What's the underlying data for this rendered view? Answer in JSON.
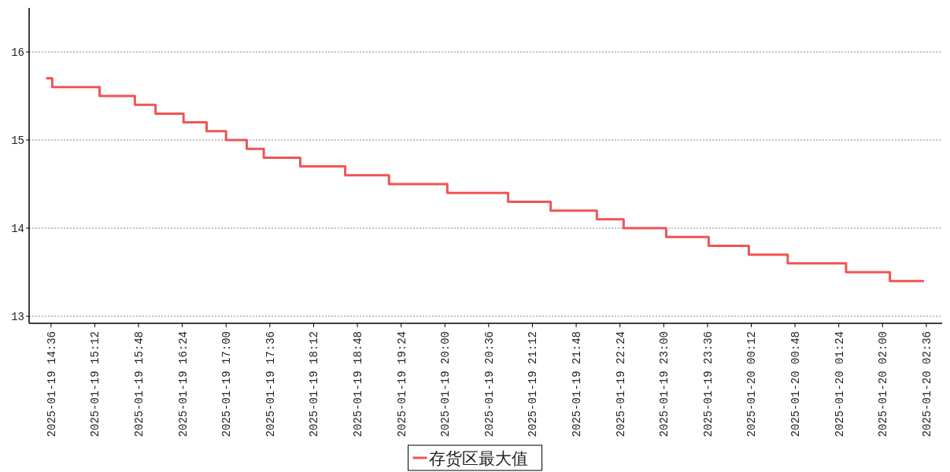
{
  "chart_data": {
    "type": "step",
    "x": [
      "2025-01-19T14:32",
      "2025-01-19T14:37",
      "2025-01-19T15:16",
      "2025-01-19T15:45",
      "2025-01-19T16:02",
      "2025-01-19T16:25",
      "2025-01-19T16:44",
      "2025-01-19T17:00",
      "2025-01-19T17:17",
      "2025-01-19T17:31",
      "2025-01-19T18:01",
      "2025-01-19T18:38",
      "2025-01-19T19:14",
      "2025-01-19T20:02",
      "2025-01-19T20:52",
      "2025-01-19T21:27",
      "2025-01-19T22:05",
      "2025-01-19T22:27",
      "2025-01-19T23:02",
      "2025-01-19T23:37",
      "2025-01-20T00:10",
      "2025-01-20T00:42",
      "2025-01-20T01:30",
      "2025-01-20T02:06",
      "2025-01-20T02:34"
    ],
    "series": [
      {
        "name": "存货区最大值",
        "color": "#ef5555",
        "values": [
          15.7,
          15.6,
          15.5,
          15.4,
          15.3,
          15.2,
          15.1,
          15.0,
          14.9,
          14.8,
          14.7,
          14.6,
          14.5,
          14.4,
          14.3,
          14.2,
          14.1,
          14.0,
          13.9,
          13.8,
          13.7,
          13.6,
          13.5,
          13.4,
          13.4
        ]
      }
    ],
    "xlim": [
      "2025-01-19T14:18",
      "2025-01-20T02:49"
    ],
    "xticks": [
      {
        "value": "2025-01-19T14:36",
        "label": "2025-01-19 14:36"
      },
      {
        "value": "2025-01-19T15:12",
        "label": "2025-01-19 15:12"
      },
      {
        "value": "2025-01-19T15:48",
        "label": "2025-01-19 15:48"
      },
      {
        "value": "2025-01-19T16:24",
        "label": "2025-01-19 16:24"
      },
      {
        "value": "2025-01-19T17:00",
        "label": "2025-01-19 17:00"
      },
      {
        "value": "2025-01-19T17:36",
        "label": "2025-01-19 17:36"
      },
      {
        "value": "2025-01-19T18:12",
        "label": "2025-01-19 18:12"
      },
      {
        "value": "2025-01-19T18:48",
        "label": "2025-01-19 18:48"
      },
      {
        "value": "2025-01-19T19:24",
        "label": "2025-01-19 19:24"
      },
      {
        "value": "2025-01-19T20:00",
        "label": "2025-01-19 20:00"
      },
      {
        "value": "2025-01-19T20:36",
        "label": "2025-01-19 20:36"
      },
      {
        "value": "2025-01-19T21:12",
        "label": "2025-01-19 21:12"
      },
      {
        "value": "2025-01-19T21:48",
        "label": "2025-01-19 21:48"
      },
      {
        "value": "2025-01-19T22:24",
        "label": "2025-01-19 22:24"
      },
      {
        "value": "2025-01-19T23:00",
        "label": "2025-01-19 23:00"
      },
      {
        "value": "2025-01-19T23:36",
        "label": "2025-01-19 23:36"
      },
      {
        "value": "2025-01-20T00:12",
        "label": "2025-01-20 00:12"
      },
      {
        "value": "2025-01-20T00:48",
        "label": "2025-01-20 00:48"
      },
      {
        "value": "2025-01-20T01:24",
        "label": "2025-01-20 01:24"
      },
      {
        "value": "2025-01-20T02:00",
        "label": "2025-01-20 02:00"
      },
      {
        "value": "2025-01-20T02:36",
        "label": "2025-01-20 02:36"
      }
    ],
    "ylim": [
      12.92,
      16.5
    ],
    "yticks": [
      13,
      14,
      15,
      16
    ],
    "grid": "y",
    "legend": "bottom"
  }
}
